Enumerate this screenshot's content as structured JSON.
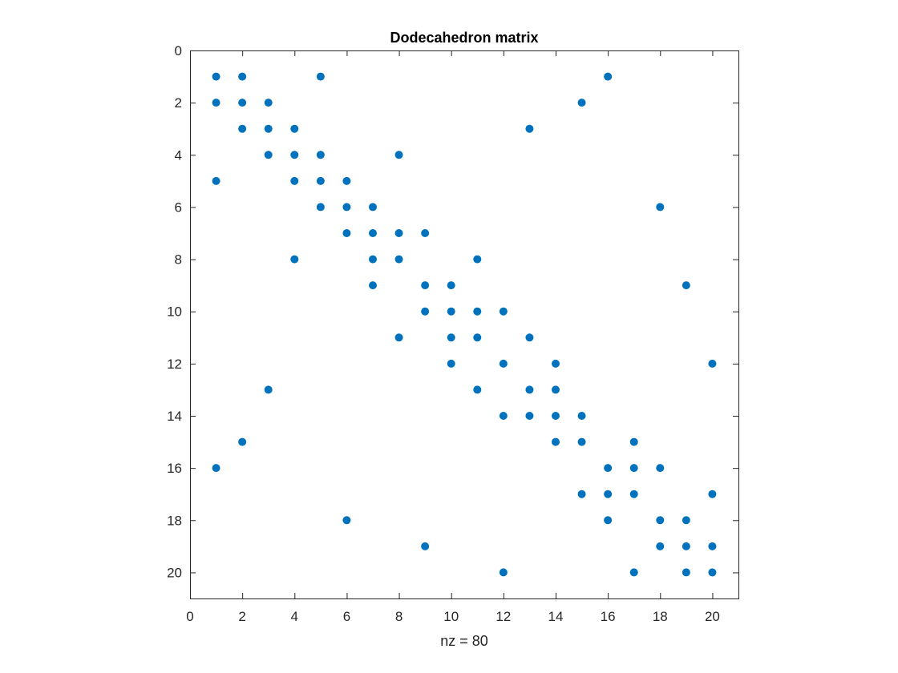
{
  "chart_data": {
    "type": "scatter",
    "title": "Dodecahedron matrix",
    "xlabel": "nz = 80",
    "ylabel": "",
    "xlim": [
      0,
      21
    ],
    "ylim": [
      0,
      21
    ],
    "y_reversed": true,
    "grid": false,
    "box": true,
    "xticks": [
      0,
      2,
      4,
      6,
      8,
      10,
      12,
      14,
      16,
      18,
      20
    ],
    "yticks": [
      0,
      2,
      4,
      6,
      8,
      10,
      12,
      14,
      16,
      18,
      20
    ],
    "colors": {
      "marker": "#0072BD",
      "axis": "#262626",
      "background": "#ffffff"
    },
    "points": [
      [
        1,
        1
      ],
      [
        2,
        1
      ],
      [
        5,
        1
      ],
      [
        16,
        1
      ],
      [
        1,
        2
      ],
      [
        2,
        2
      ],
      [
        3,
        2
      ],
      [
        15,
        2
      ],
      [
        2,
        3
      ],
      [
        3,
        3
      ],
      [
        4,
        3
      ],
      [
        13,
        3
      ],
      [
        3,
        4
      ],
      [
        4,
        4
      ],
      [
        5,
        4
      ],
      [
        8,
        4
      ],
      [
        1,
        5
      ],
      [
        4,
        5
      ],
      [
        5,
        5
      ],
      [
        6,
        5
      ],
      [
        5,
        6
      ],
      [
        6,
        6
      ],
      [
        7,
        6
      ],
      [
        18,
        6
      ],
      [
        6,
        7
      ],
      [
        7,
        7
      ],
      [
        8,
        7
      ],
      [
        9,
        7
      ],
      [
        4,
        8
      ],
      [
        7,
        8
      ],
      [
        8,
        8
      ],
      [
        11,
        8
      ],
      [
        7,
        9
      ],
      [
        9,
        9
      ],
      [
        10,
        9
      ],
      [
        19,
        9
      ],
      [
        9,
        10
      ],
      [
        10,
        10
      ],
      [
        11,
        10
      ],
      [
        12,
        10
      ],
      [
        8,
        11
      ],
      [
        10,
        11
      ],
      [
        11,
        11
      ],
      [
        13,
        11
      ],
      [
        10,
        12
      ],
      [
        12,
        12
      ],
      [
        14,
        12
      ],
      [
        20,
        12
      ],
      [
        3,
        13
      ],
      [
        11,
        13
      ],
      [
        13,
        13
      ],
      [
        14,
        13
      ],
      [
        12,
        14
      ],
      [
        13,
        14
      ],
      [
        14,
        14
      ],
      [
        15,
        14
      ],
      [
        2,
        15
      ],
      [
        14,
        15
      ],
      [
        15,
        15
      ],
      [
        17,
        15
      ],
      [
        1,
        16
      ],
      [
        16,
        16
      ],
      [
        17,
        16
      ],
      [
        18,
        16
      ],
      [
        15,
        17
      ],
      [
        16,
        17
      ],
      [
        17,
        17
      ],
      [
        20,
        17
      ],
      [
        6,
        18
      ],
      [
        16,
        18
      ],
      [
        18,
        18
      ],
      [
        19,
        18
      ],
      [
        9,
        19
      ],
      [
        18,
        19
      ],
      [
        19,
        19
      ],
      [
        20,
        19
      ],
      [
        12,
        20
      ],
      [
        17,
        20
      ],
      [
        19,
        20
      ],
      [
        20,
        20
      ]
    ]
  }
}
